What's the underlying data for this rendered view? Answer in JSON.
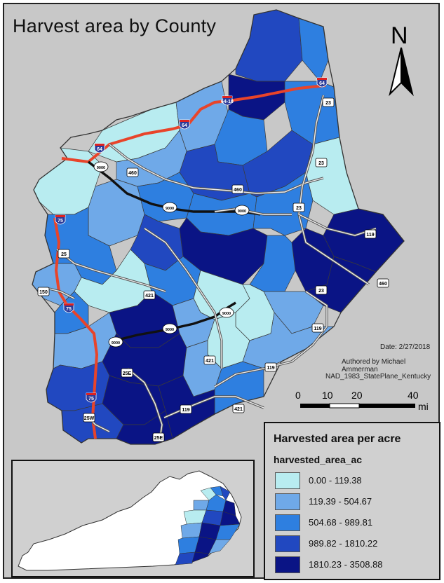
{
  "map": {
    "title": "Harvest area by County",
    "north_label": "N",
    "date": "Date: 2/27/2018",
    "author": "Authored by Michael Ammerman",
    "projection": "NAD_1983_StatePlane_Kentucky",
    "scale": {
      "ticks": [
        "0",
        "10",
        "20",
        "40"
      ],
      "unit": "mi"
    },
    "route_labels": [
      "64",
      "64",
      "64",
      "64-10",
      "9000",
      "9000",
      "9000",
      "9000",
      "9000",
      "9000",
      "460",
      "460",
      "460",
      "23",
      "23",
      "23",
      "23",
      "119",
      "119",
      "119",
      "119",
      "75",
      "75",
      "75",
      "25",
      "150",
      "421",
      "421",
      "421",
      "25E",
      "25E",
      "25W"
    ]
  },
  "legend": {
    "title": "Harvested area per acre",
    "field": "harvested_area_ac",
    "classes": [
      {
        "label": "0.00 - 119.38",
        "color": "#b8ecf0"
      },
      {
        "label": "119.39 - 504.67",
        "color": "#6fa9e8"
      },
      {
        "label": "504.68 - 989.81",
        "color": "#2e7fe0"
      },
      {
        "label": "989.82 - 1810.22",
        "color": "#2148c0"
      },
      {
        "label": "1810.23 - 3508.88",
        "color": "#0a1485"
      }
    ]
  },
  "inset": {
    "name": "Kentucky locator"
  },
  "colors": {
    "frame_bg": "#c8c8c8",
    "interstate_red": "#e8442a",
    "corridor_black": "#111111",
    "road_border": "#555555"
  }
}
